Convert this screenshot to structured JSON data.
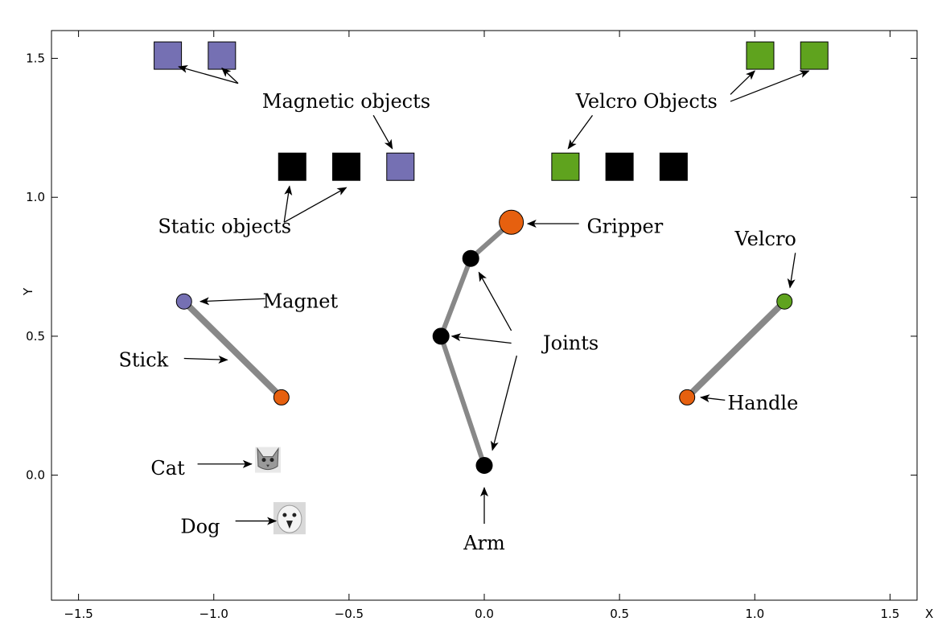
{
  "chart_data": {
    "type": "scatter",
    "xlabel": "X",
    "ylabel": "Y",
    "xlim": [
      -1.6,
      1.6
    ],
    "ylim": [
      -0.45,
      1.6
    ],
    "xticks": [
      {
        "v": -1.5,
        "label": "−1.5"
      },
      {
        "v": -1.0,
        "label": "−1.0"
      },
      {
        "v": -0.5,
        "label": "−0.5"
      },
      {
        "v": 0.0,
        "label": "0.0"
      },
      {
        "v": 0.5,
        "label": "0.5"
      },
      {
        "v": 1.0,
        "label": "1.0"
      },
      {
        "v": 1.5,
        "label": "1.5"
      }
    ],
    "yticks": [
      {
        "v": 0.0,
        "label": "0.0"
      },
      {
        "v": 0.5,
        "label": "0.5"
      },
      {
        "v": 1.0,
        "label": "1.0"
      },
      {
        "v": 1.5,
        "label": "1.5"
      }
    ],
    "colors": {
      "magnetic": "#7570b3",
      "velcro": "#5fa31e",
      "static": "#000000",
      "orange": "#e6600f",
      "link": "#888888"
    },
    "square_objects": [
      {
        "kind": "magnetic",
        "x": -1.17,
        "y": 1.51
      },
      {
        "kind": "magnetic",
        "x": -0.97,
        "y": 1.51
      },
      {
        "kind": "velcro",
        "x": 1.02,
        "y": 1.51
      },
      {
        "kind": "velcro",
        "x": 1.22,
        "y": 1.51
      },
      {
        "kind": "static",
        "x": -0.71,
        "y": 1.11
      },
      {
        "kind": "static",
        "x": -0.51,
        "y": 1.11
      },
      {
        "kind": "magnetic",
        "x": -0.31,
        "y": 1.11
      },
      {
        "kind": "velcro",
        "x": 0.3,
        "y": 1.11
      },
      {
        "kind": "static",
        "x": 0.5,
        "y": 1.11
      },
      {
        "kind": "static",
        "x": 0.7,
        "y": 1.11
      }
    ],
    "arm": [
      {
        "x": 0.0,
        "y": 0.035
      },
      {
        "x": -0.16,
        "y": 0.5
      },
      {
        "x": -0.05,
        "y": 0.78
      },
      {
        "x": 0.1,
        "y": 0.91
      }
    ],
    "sticks": [
      {
        "from": {
          "x": -1.11,
          "y": 0.625
        },
        "to": {
          "x": -0.75,
          "y": 0.28
        },
        "end_kind": "magnetic",
        "handle_kind": "orange"
      },
      {
        "from": {
          "x": 1.11,
          "y": 0.625
        },
        "to": {
          "x": 0.75,
          "y": 0.28
        },
        "end_kind": "velcro",
        "handle_kind": "orange"
      }
    ],
    "images": [
      {
        "name": "cat",
        "x": -0.8,
        "y": 0.055
      },
      {
        "name": "dog",
        "x": -0.72,
        "y": -0.155
      }
    ],
    "annotations": [
      {
        "id": "magnetic-objects",
        "text": "Magnetic objects",
        "x": -0.51,
        "y": 1.345,
        "anchor": "middle"
      },
      {
        "id": "velcro-objects",
        "text": "Velcro Objects",
        "x": 0.6,
        "y": 1.345,
        "anchor": "middle"
      },
      {
        "id": "static-objects",
        "text": "Static objects",
        "x": -0.96,
        "y": 0.895,
        "anchor": "middle"
      },
      {
        "id": "gripper",
        "text": "Gripper",
        "x": 0.52,
        "y": 0.895,
        "anchor": "middle"
      },
      {
        "id": "velcro",
        "text": "Velcro",
        "x": 1.04,
        "y": 0.85,
        "anchor": "middle"
      },
      {
        "id": "magnet",
        "text": "Magnet",
        "x": -0.68,
        "y": 0.625,
        "anchor": "middle"
      },
      {
        "id": "stick",
        "text": "Stick",
        "x": -1.26,
        "y": 0.415,
        "anchor": "middle"
      },
      {
        "id": "joints",
        "text": "Joints",
        "x": 0.32,
        "y": 0.475,
        "anchor": "middle"
      },
      {
        "id": "handle",
        "text": "Handle",
        "x": 1.03,
        "y": 0.26,
        "anchor": "middle"
      },
      {
        "id": "cat",
        "text": "Cat",
        "x": -1.17,
        "y": 0.025,
        "anchor": "middle"
      },
      {
        "id": "dog",
        "text": "Dog",
        "x": -1.05,
        "y": -0.185,
        "anchor": "middle"
      },
      {
        "id": "arm",
        "text": "Arm",
        "x": 0.0,
        "y": -0.245,
        "anchor": "middle"
      }
    ],
    "arrows": [
      {
        "from": {
          "x": -0.91,
          "y": 1.41
        },
        "to": {
          "x": -1.13,
          "y": 1.47
        }
      },
      {
        "from": {
          "x": -0.91,
          "y": 1.41
        },
        "to": {
          "x": -0.97,
          "y": 1.465
        }
      },
      {
        "from": {
          "x": -0.41,
          "y": 1.295
        },
        "to": {
          "x": -0.34,
          "y": 1.175
        }
      },
      {
        "from": {
          "x": 0.4,
          "y": 1.295
        },
        "to": {
          "x": 0.31,
          "y": 1.175
        }
      },
      {
        "from": {
          "x": 0.91,
          "y": 1.37
        },
        "to": {
          "x": 1.0,
          "y": 1.455
        }
      },
      {
        "from": {
          "x": 0.91,
          "y": 1.345
        },
        "to": {
          "x": 1.2,
          "y": 1.455
        }
      },
      {
        "from": {
          "x": -0.74,
          "y": 0.91
        },
        "to": {
          "x": -0.72,
          "y": 1.04
        }
      },
      {
        "from": {
          "x": -0.74,
          "y": 0.91
        },
        "to": {
          "x": -0.51,
          "y": 1.035
        }
      },
      {
        "from": {
          "x": 0.35,
          "y": 0.905
        },
        "to": {
          "x": 0.16,
          "y": 0.905
        }
      },
      {
        "from": {
          "x": 1.15,
          "y": 0.8
        },
        "to": {
          "x": 1.13,
          "y": 0.675
        }
      },
      {
        "from": {
          "x": -0.81,
          "y": 0.635
        },
        "to": {
          "x": -1.05,
          "y": 0.625
        }
      },
      {
        "from": {
          "x": -1.11,
          "y": 0.42
        },
        "to": {
          "x": -0.95,
          "y": 0.415
        }
      },
      {
        "from": {
          "x": 0.1,
          "y": 0.475
        },
        "to": {
          "x": -0.12,
          "y": 0.5
        }
      },
      {
        "from": {
          "x": 0.1,
          "y": 0.52
        },
        "to": {
          "x": -0.02,
          "y": 0.73
        }
      },
      {
        "from": {
          "x": 0.12,
          "y": 0.43
        },
        "to": {
          "x": 0.03,
          "y": 0.09
        }
      },
      {
        "from": {
          "x": 0.89,
          "y": 0.27
        },
        "to": {
          "x": 0.8,
          "y": 0.28
        }
      },
      {
        "from": {
          "x": -1.06,
          "y": 0.04
        },
        "to": {
          "x": -0.86,
          "y": 0.04
        }
      },
      {
        "from": {
          "x": -0.92,
          "y": -0.165
        },
        "to": {
          "x": -0.77,
          "y": -0.165
        }
      },
      {
        "from": {
          "x": 0.0,
          "y": -0.175
        },
        "to": {
          "x": 0.0,
          "y": -0.045
        }
      }
    ]
  }
}
